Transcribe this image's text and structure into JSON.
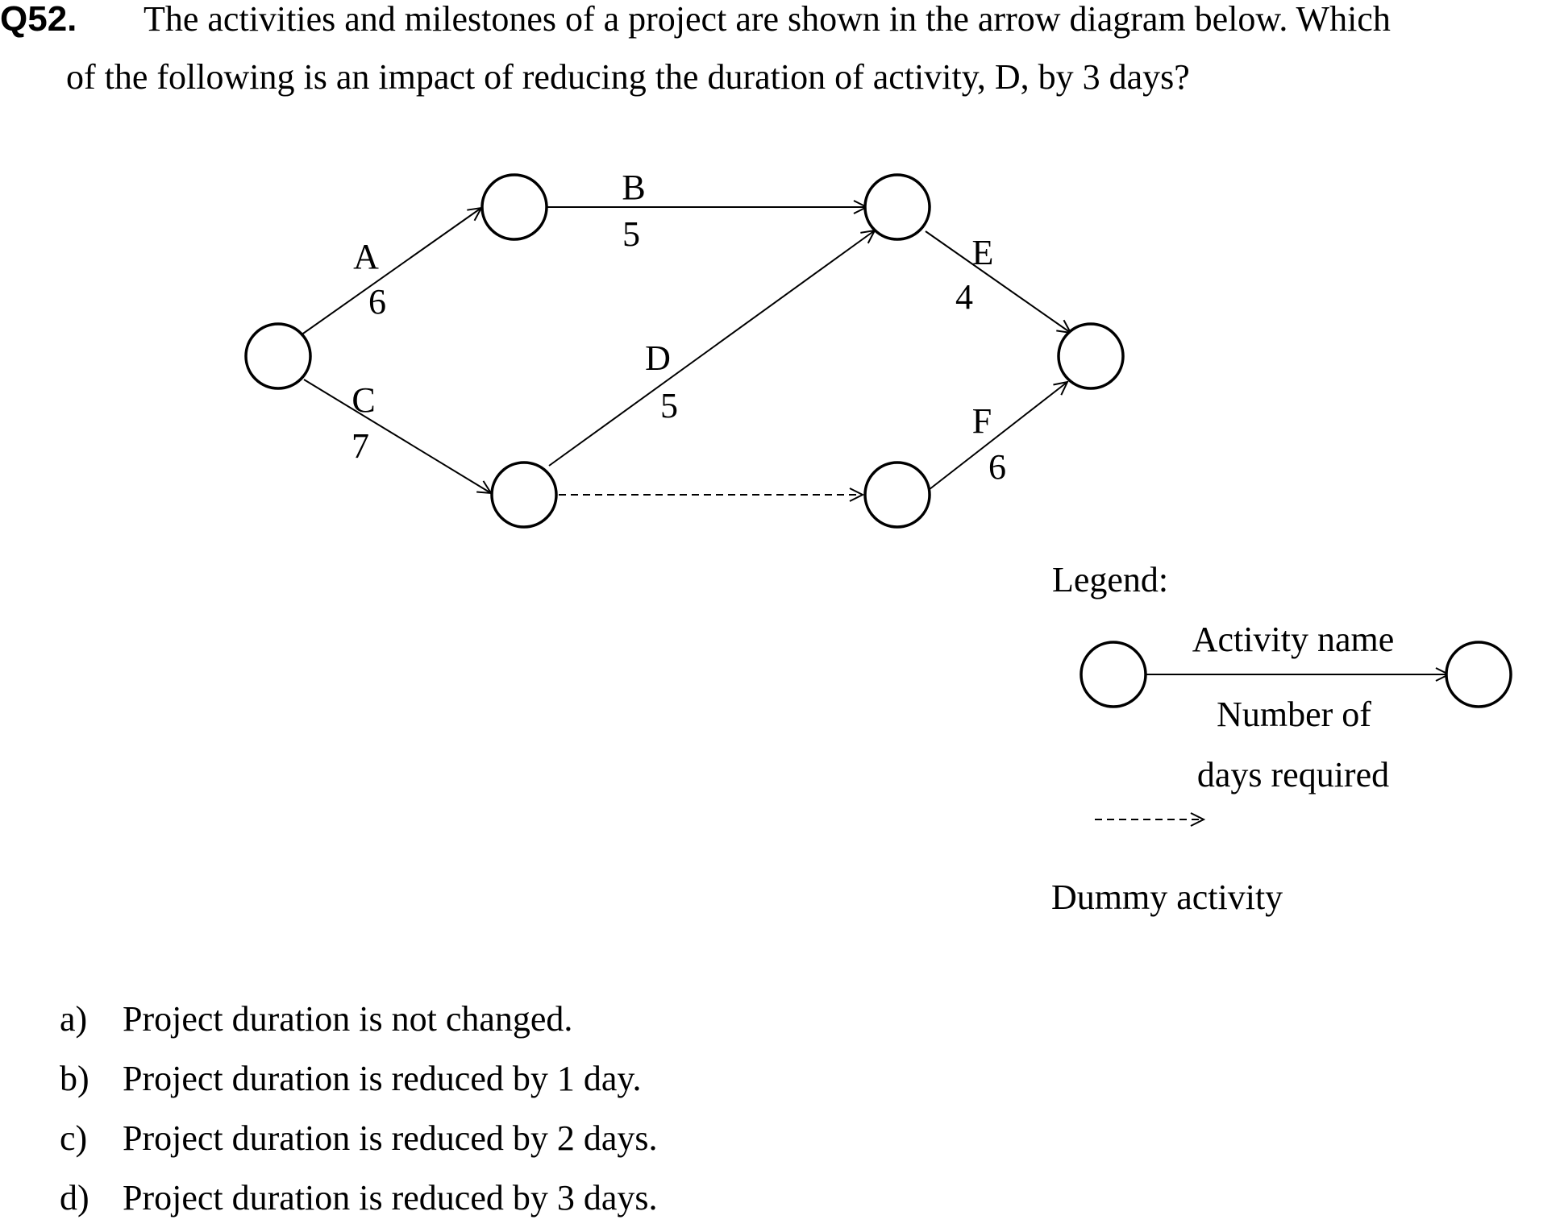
{
  "question": {
    "number": "Q52.",
    "line1": "The activities and milestones of a project are shown in the arrow diagram below. Which",
    "line2": "of the following is an impact of reducing the duration of activity, D, by 3 days?"
  },
  "diagram": {
    "nodes": [
      "n1",
      "n2",
      "n3",
      "n4",
      "n5",
      "n6"
    ],
    "activities": [
      {
        "name": "A",
        "days": "6",
        "from": "n1",
        "to": "n2"
      },
      {
        "name": "B",
        "days": "5",
        "from": "n2",
        "to": "n3"
      },
      {
        "name": "C",
        "days": "7",
        "from": "n1",
        "to": "n4"
      },
      {
        "name": "D",
        "days": "5",
        "from": "n4",
        "to": "n3"
      },
      {
        "name": "E",
        "days": "4",
        "from": "n3",
        "to": "n6"
      },
      {
        "name": "F",
        "days": "6",
        "from": "n5",
        "to": "n6"
      }
    ],
    "dummy": {
      "from": "n4",
      "to": "n5"
    }
  },
  "legend": {
    "title": "Legend:",
    "activity_name": "Activity name",
    "days_line1": "Number of",
    "days_line2": "days required",
    "dummy_label": "Dummy activity"
  },
  "options": [
    {
      "letter": "a)",
      "text": "Project duration is not changed."
    },
    {
      "letter": "b)",
      "text": "Project duration is reduced by 1 day."
    },
    {
      "letter": "c)",
      "text": "Project duration is reduced by 2 days."
    },
    {
      "letter": "d)",
      "text": "Project duration is reduced by 3 days."
    }
  ]
}
